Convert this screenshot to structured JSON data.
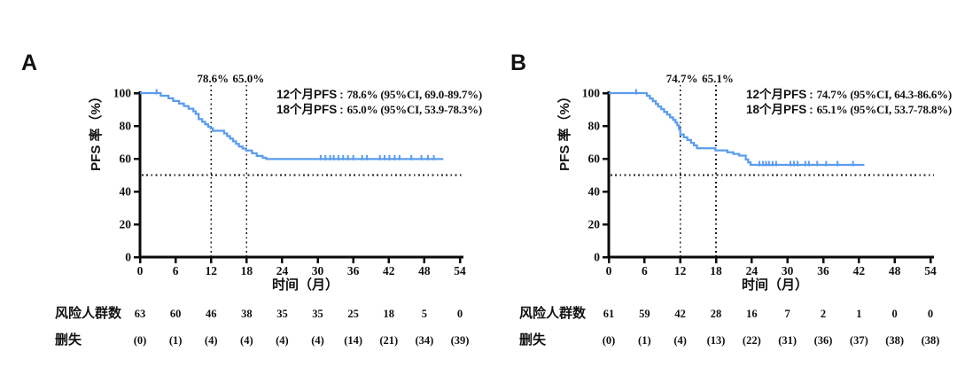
{
  "page": {
    "background": "#ffffff"
  },
  "colors": {
    "curve": "#5a9cee",
    "axis": "#0a0a0a",
    "dotted": "#1a1a1a",
    "text": "#111111"
  },
  "chart_data": [
    {
      "type": "line",
      "subtype": "kaplan-meier-step",
      "panel_label": "A",
      "xlabel": "时间（月）",
      "ylabel": "PFS 率（%）",
      "xlim": [
        0,
        54
      ],
      "ylim": [
        0,
        100
      ],
      "xticks": [
        0,
        6,
        12,
        18,
        24,
        30,
        36,
        42,
        48,
        54
      ],
      "yticks": [
        0,
        20,
        40,
        60,
        80,
        100
      ],
      "grid": false,
      "curve_color": "#5a9cee",
      "reference_line_y": 50,
      "landmarks": [
        {
          "time": 12,
          "label": "78.6%"
        },
        {
          "time": 18,
          "label": "65.0%"
        }
      ],
      "annotations": [
        {
          "label": "12个月PFS",
          "colon": ":",
          "value": "78.6% (95%CI, 69.0-89.7%)"
        },
        {
          "label": "18个月PFS",
          "colon": ":",
          "value": "65.0% (95%CI, 53.9-78.3%)"
        }
      ],
      "steps": [
        [
          0,
          100
        ],
        [
          3.5,
          98.4
        ],
        [
          4.8,
          96.8
        ],
        [
          5.6,
          95.2
        ],
        [
          6.6,
          93.7
        ],
        [
          7.4,
          92.1
        ],
        [
          8.2,
          90.5
        ],
        [
          9.0,
          88.9
        ],
        [
          9.4,
          87.3
        ],
        [
          9.9,
          84.1
        ],
        [
          10.5,
          82.5
        ],
        [
          11.0,
          81.0
        ],
        [
          11.5,
          79.5
        ],
        [
          11.9,
          78.6
        ],
        [
          12.3,
          77.0
        ],
        [
          14.2,
          75.4
        ],
        [
          14.7,
          73.8
        ],
        [
          15.2,
          72.2
        ],
        [
          15.7,
          70.6
        ],
        [
          16.2,
          69.0
        ],
        [
          16.7,
          67.4
        ],
        [
          17.3,
          66.2
        ],
        [
          17.9,
          65.0
        ],
        [
          18.9,
          63.3
        ],
        [
          19.7,
          61.7
        ],
        [
          20.7,
          60.6
        ],
        [
          21.3,
          59.8
        ]
      ],
      "curve_end": 51.2,
      "censors": [
        [
          2.8,
          100
        ],
        [
          30.5,
          59.8
        ],
        [
          31.3,
          59.8
        ],
        [
          32.1,
          59.8
        ],
        [
          32.7,
          59.8
        ],
        [
          33.5,
          59.8
        ],
        [
          34.3,
          59.8
        ],
        [
          35.1,
          59.8
        ],
        [
          36.0,
          59.8
        ],
        [
          37.5,
          59.8
        ],
        [
          38.3,
          59.8
        ],
        [
          40.5,
          59.8
        ],
        [
          41.3,
          59.8
        ],
        [
          42.1,
          59.8
        ],
        [
          43.0,
          59.8
        ],
        [
          43.8,
          59.8
        ],
        [
          45.8,
          59.8
        ],
        [
          47.5,
          59.8
        ],
        [
          48.6,
          59.8
        ],
        [
          49.6,
          59.8
        ]
      ],
      "risk_table": {
        "rows": [
          {
            "label": "风险人群数",
            "values": [
              "63",
              "60",
              "46",
              "38",
              "35",
              "35",
              "25",
              "18",
              "5",
              "0"
            ]
          },
          {
            "label": "删失",
            "values": [
              "(0)",
              "(1)",
              "(4)",
              "(4)",
              "(4)",
              "(4)",
              "(14)",
              "(21)",
              "(34)",
              "(39)"
            ]
          }
        ]
      }
    },
    {
      "type": "line",
      "subtype": "kaplan-meier-step",
      "panel_label": "B",
      "xlabel": "时间（月）",
      "ylabel": "PFS 率（%）",
      "xlim": [
        0,
        54
      ],
      "ylim": [
        0,
        100
      ],
      "xticks": [
        0,
        6,
        12,
        18,
        24,
        30,
        36,
        42,
        48,
        54
      ],
      "yticks": [
        0,
        20,
        40,
        60,
        80,
        100
      ],
      "grid": false,
      "curve_color": "#5a9cee",
      "reference_line_y": 50,
      "landmarks": [
        {
          "time": 12,
          "label": "74.7%"
        },
        {
          "time": 18,
          "label": "65.1%"
        }
      ],
      "annotations": [
        {
          "label": "12个月PFS",
          "colon": ":",
          "value": "74.7% (95%CI, 64.3-86.6%)"
        },
        {
          "label": "18个月PFS",
          "colon": ":",
          "value": "65.1% (95%CI, 53.7-78.8%)"
        }
      ],
      "steps": [
        [
          0,
          100
        ],
        [
          6.4,
          98.4
        ],
        [
          6.9,
          96.7
        ],
        [
          7.4,
          95.1
        ],
        [
          7.9,
          93.4
        ],
        [
          8.3,
          91.8
        ],
        [
          8.8,
          90.2
        ],
        [
          9.3,
          88.5
        ],
        [
          9.8,
          86.9
        ],
        [
          10.3,
          85.2
        ],
        [
          10.8,
          83.6
        ],
        [
          11.2,
          82.0
        ],
        [
          11.5,
          80.3
        ],
        [
          11.8,
          78.0
        ],
        [
          12.0,
          74.7
        ],
        [
          12.6,
          73.0
        ],
        [
          13.2,
          71.4
        ],
        [
          13.8,
          69.7
        ],
        [
          14.3,
          68.1
        ],
        [
          14.8,
          66.4
        ],
        [
          17.9,
          65.1
        ],
        [
          19.9,
          63.9
        ],
        [
          20.9,
          62.9
        ],
        [
          21.9,
          61.9
        ],
        [
          23.0,
          59.5
        ],
        [
          23.4,
          57.8
        ],
        [
          23.8,
          56.2
        ]
      ],
      "curve_end": 42.9,
      "censors": [
        [
          4.6,
          100
        ],
        [
          25.3,
          56.2
        ],
        [
          25.9,
          56.2
        ],
        [
          26.4,
          56.2
        ],
        [
          26.9,
          56.2
        ],
        [
          27.5,
          56.2
        ],
        [
          28.1,
          56.2
        ],
        [
          30.5,
          56.2
        ],
        [
          31.1,
          56.2
        ],
        [
          31.7,
          56.2
        ],
        [
          33.0,
          56.2
        ],
        [
          33.6,
          56.2
        ],
        [
          35.0,
          56.2
        ],
        [
          36.5,
          56.2
        ],
        [
          38.4,
          56.2
        ],
        [
          41.0,
          56.2
        ]
      ],
      "risk_table": {
        "rows": [
          {
            "label": "风险人群数",
            "values": [
              "61",
              "59",
              "42",
              "28",
              "16",
              "7",
              "2",
              "1",
              "0",
              "0"
            ]
          },
          {
            "label": "删失",
            "values": [
              "(0)",
              "(1)",
              "(4)",
              "(13)",
              "(22)",
              "(31)",
              "(36)",
              "(37)",
              "(38)",
              "(38)"
            ]
          }
        ]
      }
    }
  ]
}
